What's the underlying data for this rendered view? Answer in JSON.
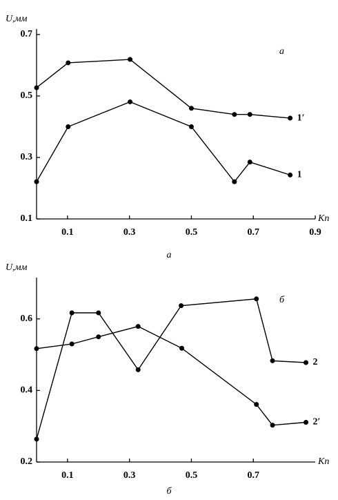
{
  "chart_data": [
    {
      "type": "line",
      "annotation": "а",
      "caption": "а",
      "y_label": "U,мм",
      "x_label": "Kп",
      "xlim": [
        0,
        0.9
      ],
      "ylim": [
        0.1,
        0.7
      ],
      "xticks": [
        0.1,
        0.3,
        0.5,
        0.7,
        0.9
      ],
      "yticks": [
        0.1,
        0.3,
        0.5,
        0.7
      ],
      "grid": false,
      "series": [
        {
          "name": "1′",
          "color": "#000000",
          "x": [
            0,
            0.102,
            0.302,
            0.5,
            0.639,
            0.689,
            0.819
          ],
          "values": [
            0.527,
            0.608,
            0.619,
            0.46,
            0.44,
            0.44,
            0.428
          ]
        },
        {
          "name": "1",
          "color": "#000000",
          "x": [
            0,
            0.102,
            0.302,
            0.5,
            0.639,
            0.689,
            0.819
          ],
          "values": [
            0.221,
            0.4,
            0.481,
            0.4,
            0.221,
            0.285,
            0.243
          ]
        }
      ]
    },
    {
      "type": "line",
      "annotation": "б",
      "caption": "б",
      "y_label": "U,мм",
      "x_label": "Kп",
      "xlim": [
        0,
        0.9
      ],
      "ylim": [
        0.2,
        0.7
      ],
      "xticks": [
        0.1,
        0.3,
        0.5,
        0.7
      ],
      "yticks": [
        0.2,
        0.4,
        0.6
      ],
      "grid": false,
      "series": [
        {
          "name": "2",
          "color": "#000000",
          "x": [
            0,
            0.114,
            0.2,
            0.328,
            0.467,
            0.71,
            0.762,
            0.87
          ],
          "values": [
            0.264,
            0.617,
            0.617,
            0.458,
            0.637,
            0.656,
            0.483,
            0.478
          ]
        },
        {
          "name": "2′",
          "color": "#000000",
          "x": [
            0,
            0.114,
            0.2,
            0.328,
            0.469,
            0.71,
            0.762,
            0.87
          ],
          "values": [
            0.517,
            0.53,
            0.55,
            0.579,
            0.518,
            0.361,
            0.303,
            0.311
          ]
        }
      ]
    }
  ]
}
